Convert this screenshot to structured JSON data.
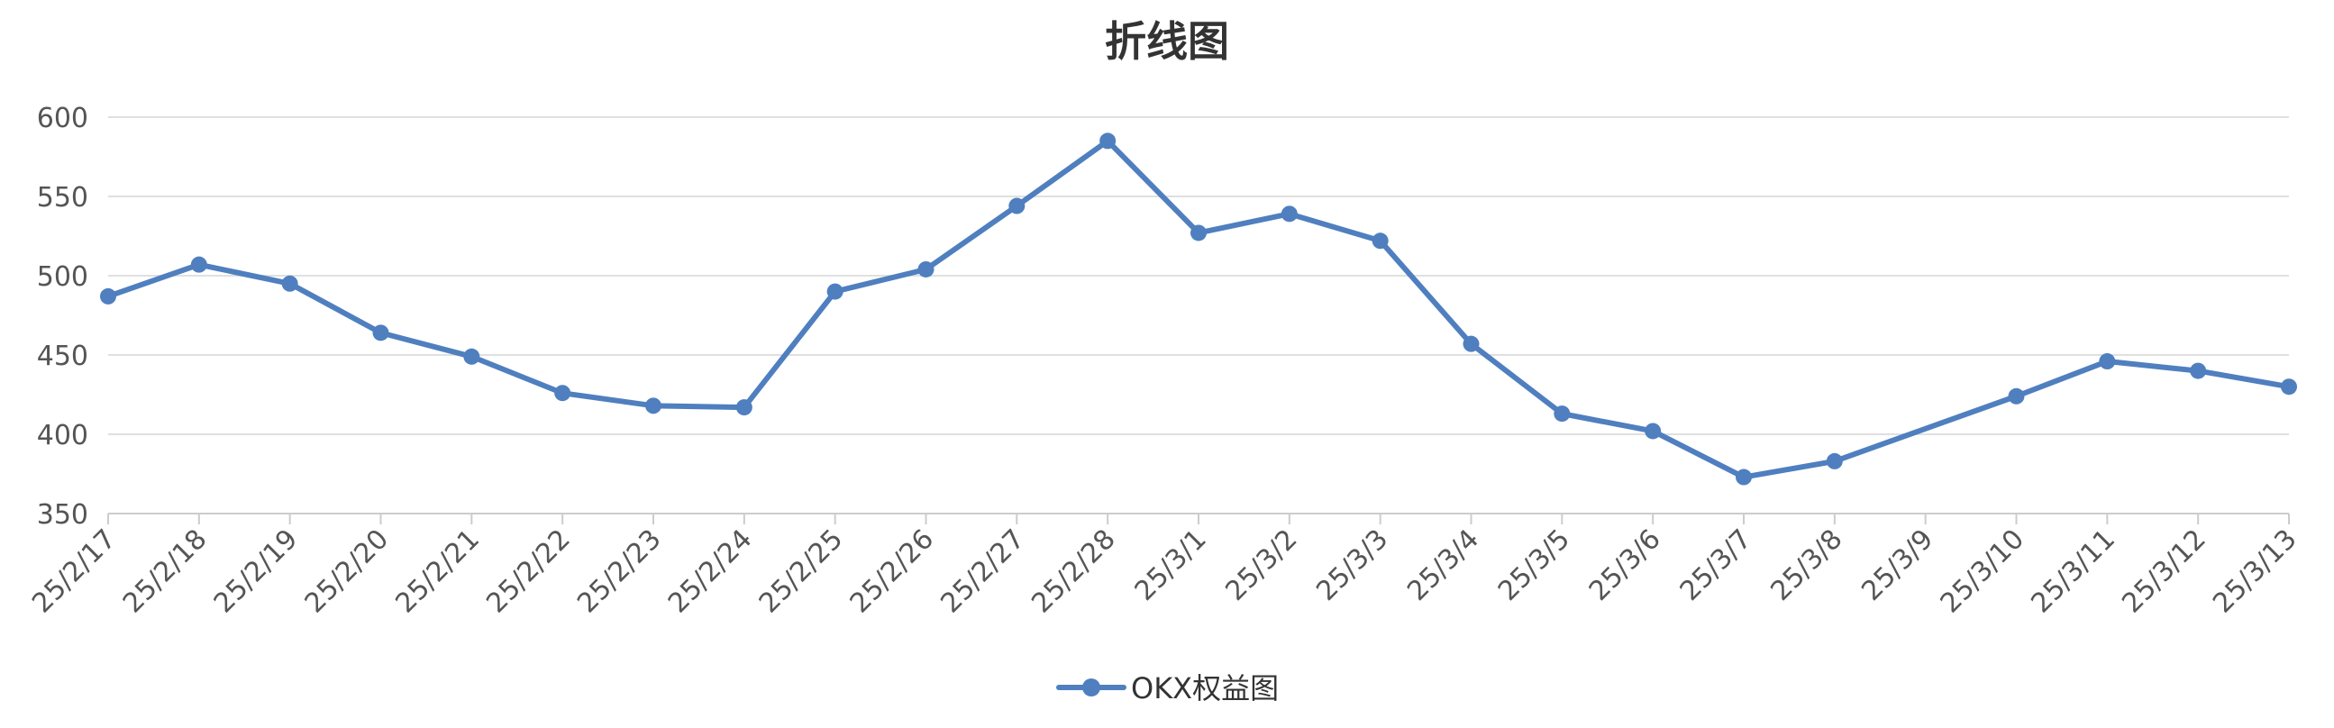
{
  "chart_data": {
    "type": "line",
    "title": "折线图",
    "xlabel": "",
    "ylabel": "",
    "categories": [
      "25/2/17",
      "25/2/18",
      "25/2/19",
      "25/2/20",
      "25/2/21",
      "25/2/22",
      "25/2/23",
      "25/2/24",
      "25/2/25",
      "25/2/26",
      "25/2/27",
      "25/2/28",
      "25/3/1",
      "25/3/2",
      "25/3/3",
      "25/3/4",
      "25/3/5",
      "25/3/6",
      "25/3/7",
      "25/3/8",
      "25/3/9",
      "25/3/10",
      "25/3/11",
      "25/3/12",
      "25/3/13"
    ],
    "series": [
      {
        "name": "OKX权益图",
        "color": "#4f7fbf",
        "values": [
          487,
          507,
          495,
          464,
          449,
          426,
          418,
          417,
          490,
          504,
          544,
          585,
          527,
          539,
          522,
          457,
          413,
          402,
          373,
          383,
          null,
          424,
          446,
          440,
          430
        ]
      }
    ],
    "ylim": [
      350,
      600
    ],
    "yticks": [
      350,
      400,
      450,
      500,
      550,
      600
    ],
    "grid": true,
    "legend_position": "bottom"
  }
}
